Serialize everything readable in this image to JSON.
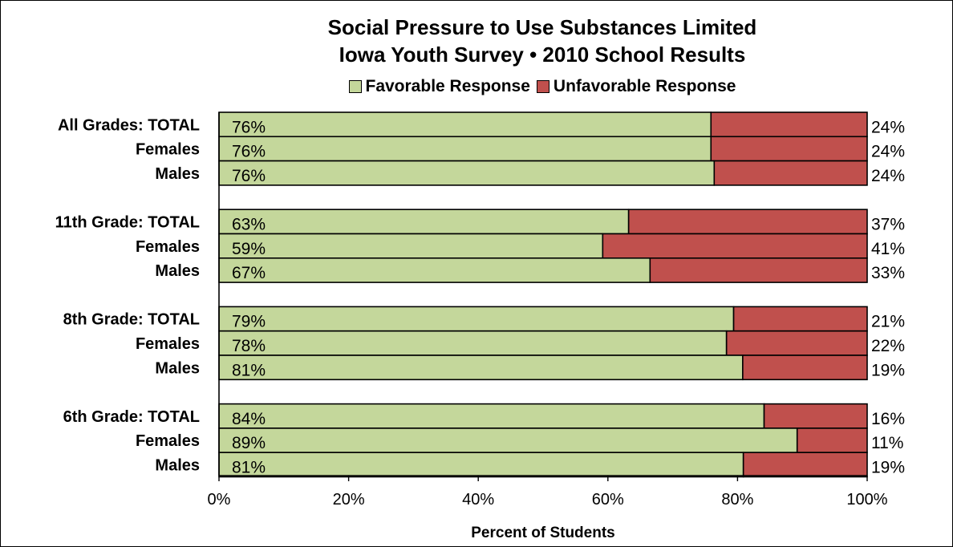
{
  "chart_data": {
    "type": "bar",
    "orientation": "horizontal",
    "stacked": true,
    "title": "Social Pressure to Use Substances Limited",
    "subtitle": "Iowa Youth Survey • 2010 School Results",
    "xlabel": "Percent of Students",
    "ylabel": "",
    "xlim": [
      0,
      100
    ],
    "x_ticks": [
      "0%",
      "20%",
      "40%",
      "60%",
      "80%",
      "100%"
    ],
    "legend_position": "top",
    "categories": [
      "All Grades:  TOTAL",
      "Females",
      "Males",
      "11th Grade:  TOTAL",
      "Females",
      "Males",
      "8th Grade:  TOTAL",
      "Females",
      "Males",
      "6th Grade:  TOTAL",
      "Females",
      "Males"
    ],
    "groups": [
      {
        "label": "All Grades:  TOTAL",
        "rows": [
          "All Grades:  TOTAL",
          "Females",
          "Males"
        ]
      },
      {
        "label": "11th Grade:  TOTAL",
        "rows": [
          "11th Grade:  TOTAL",
          "Females",
          "Males"
        ]
      },
      {
        "label": "8th Grade:  TOTAL",
        "rows": [
          "8th Grade:  TOTAL",
          "Females",
          "Males"
        ]
      },
      {
        "label": "6th Grade:  TOTAL",
        "rows": [
          "6th Grade:  TOTAL",
          "Females",
          "Males"
        ]
      }
    ],
    "series": [
      {
        "name": "Favorable Response",
        "color": "#c4d79b",
        "values": [
          75.9,
          75.9,
          76.4,
          63.2,
          59.2,
          66.5,
          79.4,
          78.3,
          80.8,
          84.1,
          89.2,
          80.9
        ],
        "labels": [
          "76%",
          "76%",
          "76%",
          "63%",
          "59%",
          "67%",
          "79%",
          "78%",
          "81%",
          "84%",
          "89%",
          "81%"
        ]
      },
      {
        "name": "Unfavorable Response",
        "color": "#c0504d",
        "values": [
          24.1,
          24.1,
          23.6,
          36.8,
          40.8,
          33.5,
          20.6,
          21.7,
          19.2,
          15.9,
          10.8,
          19.1
        ],
        "labels": [
          "24%",
          "24%",
          "24%",
          "37%",
          "41%",
          "33%",
          "21%",
          "22%",
          "19%",
          "16%",
          "11%",
          "19%"
        ]
      }
    ]
  }
}
